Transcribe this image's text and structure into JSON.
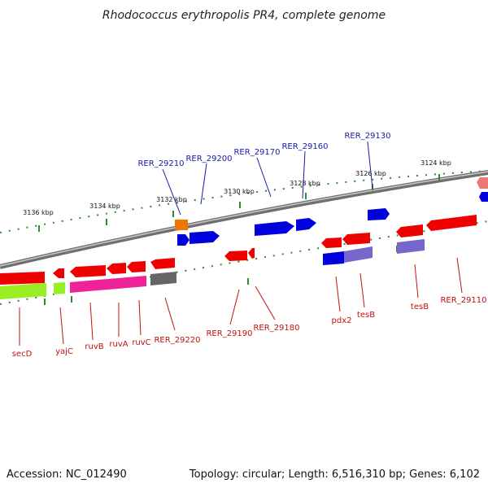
{
  "title": "Rhodococcus erythropolis PR4, complete genome",
  "footer": {
    "accession": "Accession: NC_012490",
    "summary": "Topology: circular; Length: 6,516,310 bp; Genes: 6,102"
  },
  "colors": {
    "backbone": "#8a8a8a",
    "tick_mark": "#2e8b2e",
    "label_top": "#1a1aa6",
    "label_bottom": "#c01010",
    "gene_red": "#ee0000",
    "gene_blue": "#0000dd",
    "gene_orange": "#ee7700",
    "gene_lime": "#99ee22",
    "gene_magenta": "#ee2299",
    "gene_gray": "#666666",
    "gene_lavender": "#7766cc",
    "gene_pink": "#ee7777"
  },
  "scale_ticks": [
    {
      "label": "3124 kbp"
    },
    {
      "label": "3126 kbp"
    },
    {
      "label": "3128 kbp"
    },
    {
      "label": "3130 kbp"
    },
    {
      "label": "3132 kbp"
    },
    {
      "label": "3134 kbp"
    },
    {
      "label": "3136 kbp"
    }
  ],
  "labels_top": [
    {
      "name": "RER_29130"
    },
    {
      "name": "RER_29160"
    },
    {
      "name": "RER_29170"
    },
    {
      "name": "RER_29200"
    },
    {
      "name": "RER_29210"
    }
  ],
  "labels_bottom": [
    {
      "name": "secD"
    },
    {
      "name": "yajC"
    },
    {
      "name": "ruvB"
    },
    {
      "name": "ruvA"
    },
    {
      "name": "ruvC"
    },
    {
      "name": "RER_29220"
    },
    {
      "name": "RER_29190"
    },
    {
      "name": "RER_29180"
    },
    {
      "name": "pdx2"
    },
    {
      "name": "tesB"
    },
    {
      "name": "tesB"
    },
    {
      "name": "RER_29110"
    }
  ]
}
